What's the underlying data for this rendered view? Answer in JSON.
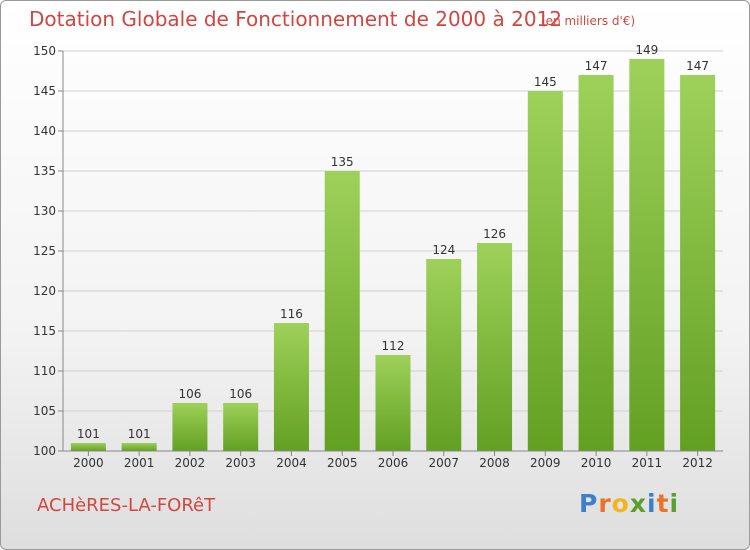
{
  "title": "Dotation Globale de Fonctionnement de 2000 à 2012",
  "subtitle": "(en milliers d'€)",
  "town": "ACHèRES-LA-FORêT",
  "logo": {
    "letters": [
      "P",
      "r",
      "o",
      "x",
      "i",
      "t",
      "i"
    ],
    "colors": [
      "#3d80c7",
      "#e8742a",
      "#f2b51d",
      "#5aa02c",
      "#3d80c7",
      "#e8742a",
      "#5aa02c"
    ]
  },
  "colors": {
    "bar_top": "#9ed15a",
    "bar_bottom": "#62a022",
    "grid": "#d0d0d0",
    "axis": "#888888",
    "text": "#333333",
    "accent": "#d2463f"
  },
  "chart_data": {
    "type": "bar",
    "title": "Dotation Globale de Fonctionnement de 2000 à 2012",
    "subtitle": "(en milliers d'€)",
    "categories": [
      "2000",
      "2001",
      "2002",
      "2003",
      "2004",
      "2005",
      "2006",
      "2007",
      "2008",
      "2009",
      "2010",
      "2011",
      "2012"
    ],
    "values": [
      101,
      101,
      106,
      106,
      116,
      135,
      112,
      124,
      126,
      145,
      147,
      149,
      147
    ],
    "ylim": [
      100,
      150
    ],
    "yticks": [
      100,
      105,
      110,
      115,
      120,
      125,
      130,
      135,
      140,
      145,
      150
    ],
    "xlabel": "",
    "ylabel": "",
    "grid": true,
    "data_labels": true
  }
}
